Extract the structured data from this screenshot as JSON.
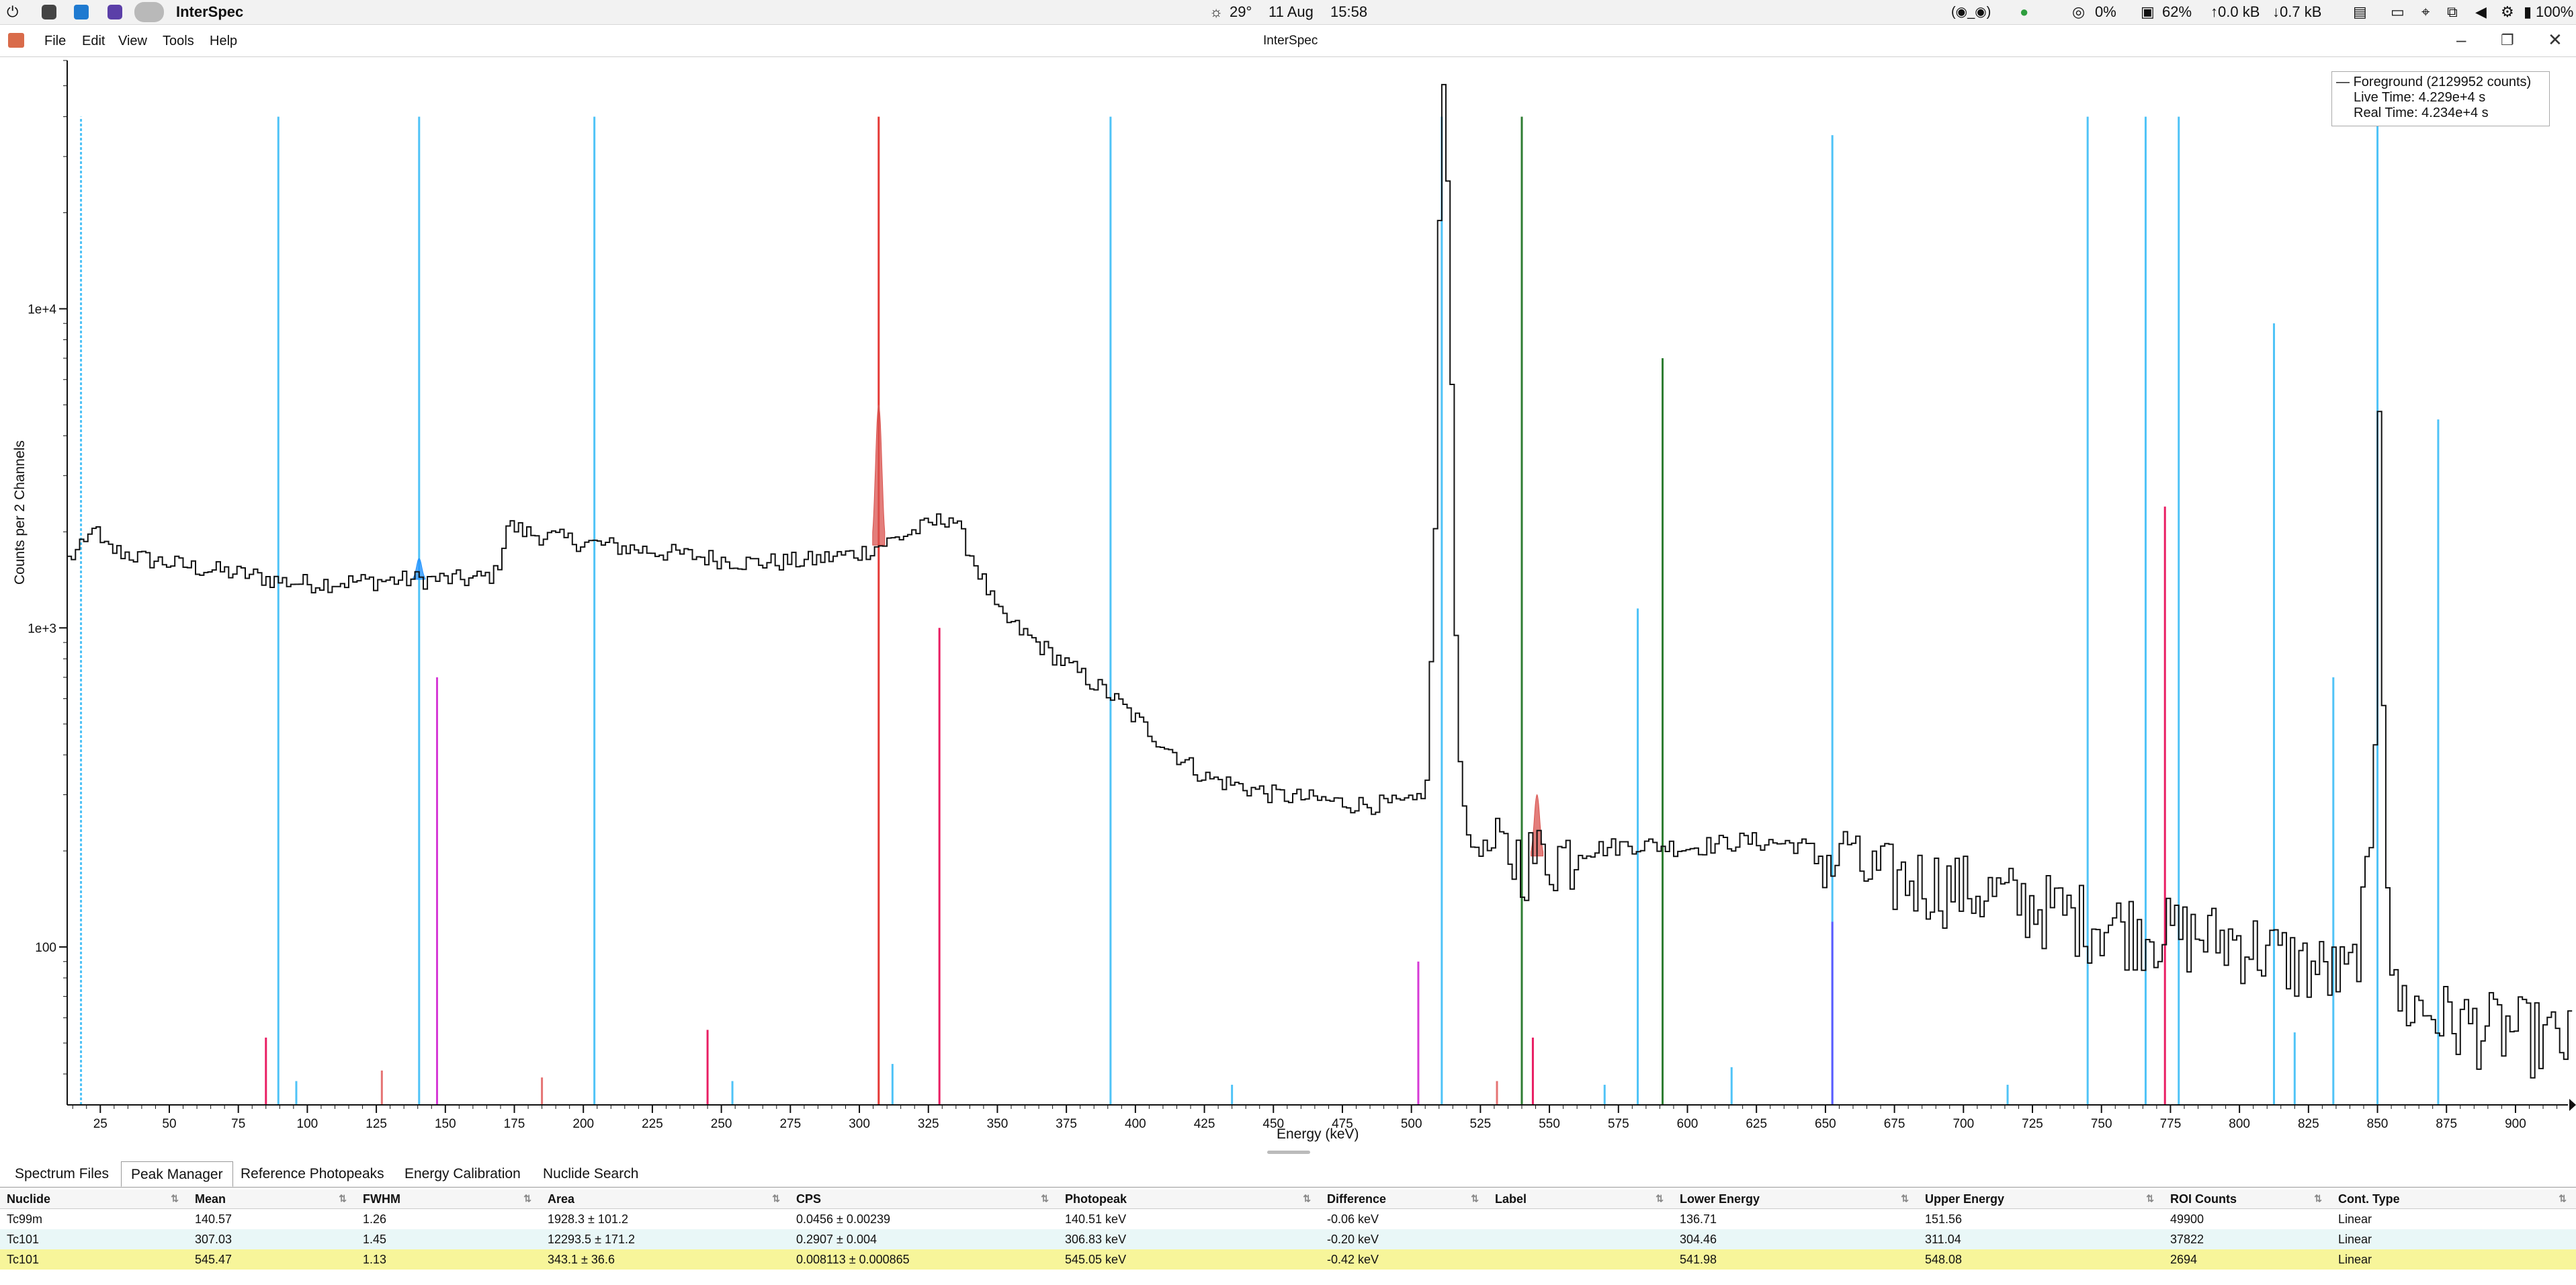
{
  "system_bar": {
    "app_name": "InterSpec",
    "weather": "29°",
    "date": "11 Aug",
    "time": "15:58",
    "vpn": "(◉_◉)",
    "cpu": "0%",
    "memory": "62%",
    "upload": "↑0.0 kB",
    "download": "↓0.7 kB",
    "battery": "100%"
  },
  "menu": {
    "items": [
      "File",
      "Edit",
      "View",
      "Tools",
      "Help"
    ],
    "window_title": "InterSpec"
  },
  "legend": {
    "series": "Foreground (2129952 counts)",
    "live_time": "Live Time: 4.229e+4 s",
    "real_time": "Real Time: 4.234e+4 s"
  },
  "chart_data": {
    "type": "line",
    "log_y": true,
    "xlabel": "Energy (keV)",
    "ylabel": "Counts per 2 Channels",
    "xlim": [
      13,
      919
    ],
    "ylim": [
      32,
      60000
    ],
    "x_ticks": [
      25,
      50,
      75,
      100,
      125,
      150,
      175,
      200,
      225,
      250,
      275,
      300,
      325,
      350,
      375,
      400,
      425,
      450,
      475,
      500,
      525,
      550,
      575,
      600,
      625,
      650,
      675,
      700,
      725,
      750,
      775,
      800,
      825,
      850,
      875,
      900
    ],
    "y_tick_labels": [
      {
        "value": 100,
        "label": "100"
      },
      {
        "value": 1000,
        "label": "1e+3"
      },
      {
        "value": 10000,
        "label": "1e+4"
      }
    ],
    "spectrum_points": [
      [
        13,
        1640
      ],
      [
        20,
        1850
      ],
      [
        22,
        2150
      ],
      [
        25,
        1800
      ],
      [
        40,
        1650
      ],
      [
        60,
        1540
      ],
      [
        80,
        1460
      ],
      [
        90,
        1400
      ],
      [
        100,
        1380
      ],
      [
        120,
        1400
      ],
      [
        140,
        1420
      ],
      [
        160,
        1420
      ],
      [
        168,
        1480
      ],
      [
        172,
        2100
      ],
      [
        180,
        1980
      ],
      [
        200,
        1850
      ],
      [
        230,
        1720
      ],
      [
        260,
        1600
      ],
      [
        280,
        1620
      ],
      [
        300,
        1720
      ],
      [
        310,
        1860
      ],
      [
        320,
        2020
      ],
      [
        333,
        2250
      ],
      [
        340,
        1700
      ],
      [
        350,
        1100
      ],
      [
        370,
        820
      ],
      [
        390,
        620
      ],
      [
        410,
        430
      ],
      [
        425,
        340
      ],
      [
        450,
        300
      ],
      [
        480,
        280
      ],
      [
        500,
        280
      ],
      [
        505,
        320
      ],
      [
        508,
        2000
      ],
      [
        510,
        40000
      ],
      [
        511,
        50000
      ],
      [
        513,
        20000
      ],
      [
        516,
        500
      ],
      [
        520,
        210
      ],
      [
        540,
        190
      ],
      [
        560,
        200
      ],
      [
        580,
        210
      ],
      [
        600,
        205
      ],
      [
        620,
        215
      ],
      [
        640,
        210
      ],
      [
        650,
        190
      ],
      [
        655,
        180
      ],
      [
        657,
        250
      ],
      [
        659,
        180
      ],
      [
        665,
        170
      ],
      [
        690,
        160
      ],
      [
        720,
        140
      ],
      [
        750,
        120
      ],
      [
        780,
        110
      ],
      [
        800,
        105
      ],
      [
        820,
        90
      ],
      [
        840,
        80
      ],
      [
        848,
        200
      ],
      [
        850,
        4800
      ],
      [
        852,
        300
      ],
      [
        855,
        70
      ],
      [
        870,
        62
      ],
      [
        880,
        58
      ],
      [
        900,
        55
      ],
      [
        919,
        50
      ]
    ],
    "shaded_peaks": [
      {
        "energy": 140.5,
        "peak": 1650,
        "color": "#1e90ff"
      },
      {
        "energy": 307,
        "peak": 5000,
        "color": "#d9534f"
      },
      {
        "energy": 545.5,
        "peak": 300,
        "color": "#d9534f"
      }
    ],
    "reference_lines": [
      {
        "energy": 18,
        "top": 40000,
        "color": "#4fc3f7",
        "dashed": true
      },
      {
        "energy": 89.5,
        "top": 40000,
        "color": "#4fc3f7"
      },
      {
        "energy": 140.5,
        "top": 40000,
        "color": "#4fc3f7"
      },
      {
        "energy": 204,
        "top": 40000,
        "color": "#4fc3f7"
      },
      {
        "energy": 307,
        "top": 40000,
        "color": "#e53935"
      },
      {
        "energy": 391,
        "top": 40000,
        "color": "#4fc3f7"
      },
      {
        "energy": 511,
        "top": 40000,
        "color": "#4fc3f7"
      },
      {
        "energy": 540,
        "top": 40000,
        "color": "#2e7d32"
      },
      {
        "energy": 652.5,
        "top": 35000,
        "color": "#4fc3f7"
      },
      {
        "energy": 745,
        "top": 40000,
        "color": "#4fc3f7"
      },
      {
        "energy": 766,
        "top": 40000,
        "color": "#4fc3f7"
      },
      {
        "energy": 778,
        "top": 40000,
        "color": "#4fc3f7"
      },
      {
        "energy": 850,
        "top": 40000,
        "color": "#4fc3f7"
      },
      {
        "energy": 591,
        "top": 7000,
        "color": "#2e7d32"
      },
      {
        "energy": 812.5,
        "top": 9000,
        "color": "#4fc3f7"
      },
      {
        "energy": 872,
        "top": 4500,
        "color": "#4fc3f7"
      },
      {
        "energy": 582,
        "top": 1150,
        "color": "#4fc3f7"
      },
      {
        "energy": 834,
        "top": 700,
        "color": "#4fc3f7"
      },
      {
        "energy": 773,
        "top": 2400,
        "color": "#e91e63"
      },
      {
        "energy": 329,
        "top": 1000,
        "color": "#e91e63"
      },
      {
        "energy": 147,
        "top": 700,
        "color": "#d63ad6"
      },
      {
        "energy": 502.5,
        "top": 90,
        "color": "#d63ad6"
      },
      {
        "energy": 652.5,
        "top": 120,
        "color": "#5c5cff"
      },
      {
        "energy": 85,
        "top": 52,
        "color": "#e91e63"
      },
      {
        "energy": 245,
        "top": 55,
        "color": "#e91e63"
      },
      {
        "energy": 544,
        "top": 52,
        "color": "#e91e63"
      },
      {
        "energy": 127,
        "top": 41,
        "color": "#e57373"
      },
      {
        "energy": 820,
        "top": 54,
        "color": "#4fc3f7"
      },
      {
        "energy": 616,
        "top": 42,
        "color": "#4fc3f7"
      },
      {
        "energy": 312,
        "top": 43,
        "color": "#4fc3f7"
      },
      {
        "energy": 96,
        "top": 38,
        "color": "#4fc3f7"
      },
      {
        "energy": 254,
        "top": 38,
        "color": "#4fc3f7"
      },
      {
        "energy": 435,
        "top": 37,
        "color": "#4fc3f7"
      },
      {
        "energy": 570,
        "top": 37,
        "color": "#4fc3f7"
      },
      {
        "energy": 716,
        "top": 37,
        "color": "#4fc3f7"
      },
      {
        "energy": 185,
        "top": 39,
        "color": "#e57373"
      },
      {
        "energy": 531,
        "top": 38,
        "color": "#e57373"
      }
    ]
  },
  "tabs": [
    {
      "label": "Spectrum Files",
      "active": false
    },
    {
      "label": "Peak Manager",
      "active": true
    },
    {
      "label": "Reference Photopeaks",
      "active": false
    },
    {
      "label": "Energy Calibration",
      "active": false
    },
    {
      "label": "Nuclide Search",
      "active": false
    }
  ],
  "table": {
    "headers": [
      "Nuclide",
      "Mean",
      "FWHM",
      "Area",
      "CPS",
      "Photopeak",
      "Difference",
      "Label",
      "Lower Energy",
      "Upper Energy",
      "ROI Counts",
      "Cont. Type"
    ],
    "rows": [
      [
        "Tc99m",
        "140.57",
        "1.26",
        "1928.3 ± 101.2",
        "0.0456 ± 0.00239",
        "140.51 keV",
        "-0.06 keV",
        "",
        "136.71",
        "151.56",
        "49900",
        "Linear"
      ],
      [
        "Tc101",
        "307.03",
        "1.45",
        "12293.5 ± 171.2",
        "0.2907 ± 0.004",
        "306.83 keV",
        "-0.20 keV",
        "",
        "304.46",
        "311.04",
        "37822",
        "Linear"
      ],
      [
        "Tc101",
        "545.47",
        "1.13",
        "343.1 ± 36.6",
        "0.008113 ± 0.000865",
        "545.05 keV",
        "-0.42 keV",
        "",
        "541.98",
        "548.08",
        "2694",
        "Linear"
      ]
    ]
  }
}
